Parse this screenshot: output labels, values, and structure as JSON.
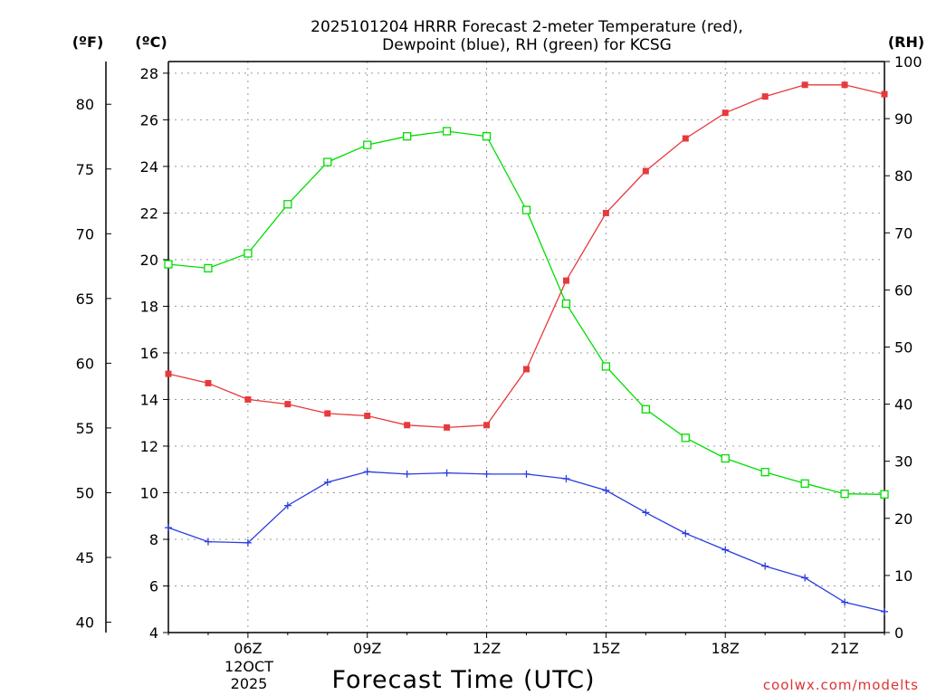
{
  "chart_data": {
    "type": "line",
    "title_line1": "2025101204 HRRR Forecast 2-meter Temperature (red),",
    "title_line2": "Dewpoint (blue), RH (green) for KCSG",
    "xlabel": "Forecast Time (UTC)",
    "date_label_line1": "12OCT",
    "date_label_line2": "2025",
    "watermark": "coolwx.com/modelts",
    "axis_unit_f": "(ºF)",
    "axis_unit_c": "(ºC)",
    "axis_unit_rh": "(RH)",
    "x": [
      4,
      5,
      6,
      7,
      8,
      9,
      10,
      11,
      12,
      13,
      14,
      15,
      16,
      17,
      18,
      19,
      20,
      21,
      22
    ],
    "xlim": [
      4,
      22
    ],
    "x_ticks": [
      6,
      9,
      12,
      15,
      18,
      21
    ],
    "x_tick_labels": [
      "06Z",
      "09Z",
      "12Z",
      "15Z",
      "18Z",
      "21Z"
    ],
    "ylim_c": [
      4,
      28.5
    ],
    "y_ticks_c": [
      4,
      6,
      8,
      10,
      12,
      14,
      16,
      18,
      20,
      22,
      24,
      26,
      28
    ],
    "y_ticks_f": [
      40,
      45,
      50,
      55,
      60,
      65,
      70,
      75,
      80
    ],
    "ylim_rh": [
      0,
      100
    ],
    "y_ticks_rh": [
      0,
      10,
      20,
      30,
      40,
      50,
      60,
      70,
      80,
      90,
      100
    ],
    "series": [
      {
        "name": "Temperature",
        "unit": "C",
        "color": "#e8393c",
        "marker": "filled-square",
        "values": [
          15.1,
          14.7,
          14.0,
          13.8,
          13.4,
          13.3,
          12.9,
          12.8,
          12.9,
          15.3,
          19.1,
          22.0,
          23.8,
          25.2,
          26.3,
          27.0,
          27.5,
          27.5,
          27.1
        ]
      },
      {
        "name": "Dewpoint",
        "unit": "C",
        "color": "#2a3ce0",
        "marker": "plus",
        "values": [
          8.5,
          7.9,
          7.85,
          9.45,
          10.45,
          10.9,
          10.8,
          10.85,
          10.8,
          10.8,
          10.6,
          10.1,
          9.15,
          8.25,
          7.55,
          6.85,
          6.35,
          5.3,
          4.9
        ]
      },
      {
        "name": "RH",
        "unit": "%",
        "color": "#00dd00",
        "marker": "open-square",
        "values": [
          64.5,
          63.8,
          66.4,
          75.0,
          82.4,
          85.4,
          86.9,
          87.8,
          86.9,
          74.0,
          57.6,
          46.6,
          39.1,
          34.1,
          30.5,
          28.1,
          26.1,
          24.3,
          24.2
        ]
      }
    ]
  }
}
